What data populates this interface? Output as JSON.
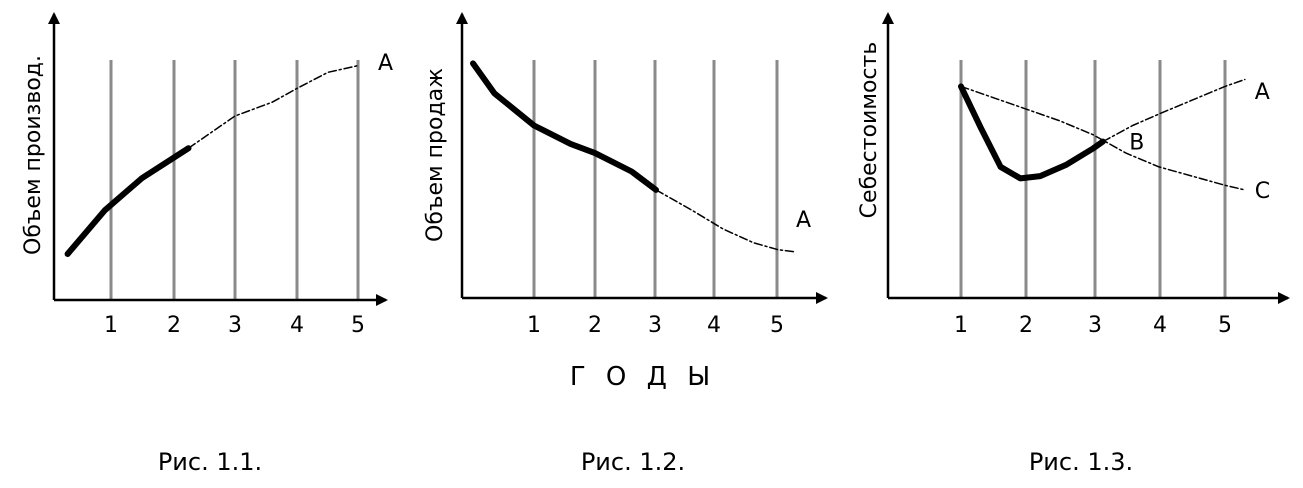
{
  "x_axis_title": "Г О Д Ы",
  "chart_data": [
    {
      "type": "line",
      "caption": "Рис. 1.1.",
      "ylabel": "Объем производ.",
      "xlabel": "",
      "x_ticks": [
        "1",
        "2",
        "3",
        "4",
        "5"
      ],
      "grid": "vertical",
      "series": [
        {
          "name": "A",
          "style": "solid-thick",
          "x": [
            0.3,
            0.9,
            1.5,
            2.25
          ],
          "y": [
            20,
            39,
            53,
            66
          ]
        },
        {
          "name": "A",
          "style": "dash-dot",
          "x": [
            2.25,
            3.0,
            3.6,
            4.0,
            4.5,
            5.0
          ],
          "y": [
            66,
            80,
            86,
            92,
            99,
            102
          ]
        }
      ]
    },
    {
      "type": "line",
      "caption": "Рис. 1.2.",
      "ylabel": "Объем продаж",
      "xlabel": "Г О Д Ы",
      "x_ticks": [
        "1",
        "2",
        "3",
        "4",
        "5"
      ],
      "grid": "vertical",
      "series": [
        {
          "name": "A",
          "style": "solid-thick",
          "x": [
            0.0,
            0.35,
            1.0,
            1.6,
            2.0,
            2.6,
            3.0
          ],
          "y": [
            102,
            89,
            75,
            67,
            63,
            55,
            47
          ]
        },
        {
          "name": "A",
          "style": "dash-dot",
          "x": [
            3.0,
            3.6,
            4.1,
            4.6,
            5.0,
            5.3
          ],
          "y": [
            47,
            38,
            30,
            24,
            21,
            20
          ]
        }
      ]
    },
    {
      "type": "line",
      "caption": "Рис. 1.3.",
      "ylabel": "Себестоимость",
      "xlabel": "",
      "x_ticks": [
        "1",
        "2",
        "3",
        "4",
        "5"
      ],
      "grid": "vertical",
      "series": [
        {
          "name": "",
          "style": "solid-thick",
          "x": [
            1.0,
            1.3,
            1.6,
            1.9,
            2.2,
            2.6,
            3.0,
            3.15
          ],
          "y": [
            92,
            74,
            57,
            52,
            53,
            58,
            65,
            68
          ]
        },
        {
          "name": "A",
          "style": "dash-dot",
          "x": [
            3.15,
            3.6,
            4.0,
            4.5,
            5.0,
            5.3
          ],
          "y": [
            68,
            75,
            80,
            86,
            92,
            95
          ]
        },
        {
          "name": "C",
          "style": "dash-dot",
          "x": [
            1.0,
            1.5,
            2.0,
            2.5,
            3.0,
            3.5,
            4.0,
            4.5,
            5.0,
            5.3
          ],
          "y": [
            92,
            87,
            82,
            77,
            71,
            63,
            57,
            53,
            49,
            47
          ]
        }
      ],
      "annotations": [
        {
          "text": "A",
          "x": 5.45,
          "y": 90
        },
        {
          "text": "B",
          "x": 3.55,
          "y": 68
        },
        {
          "text": "C",
          "x": 5.45,
          "y": 47
        }
      ]
    }
  ]
}
